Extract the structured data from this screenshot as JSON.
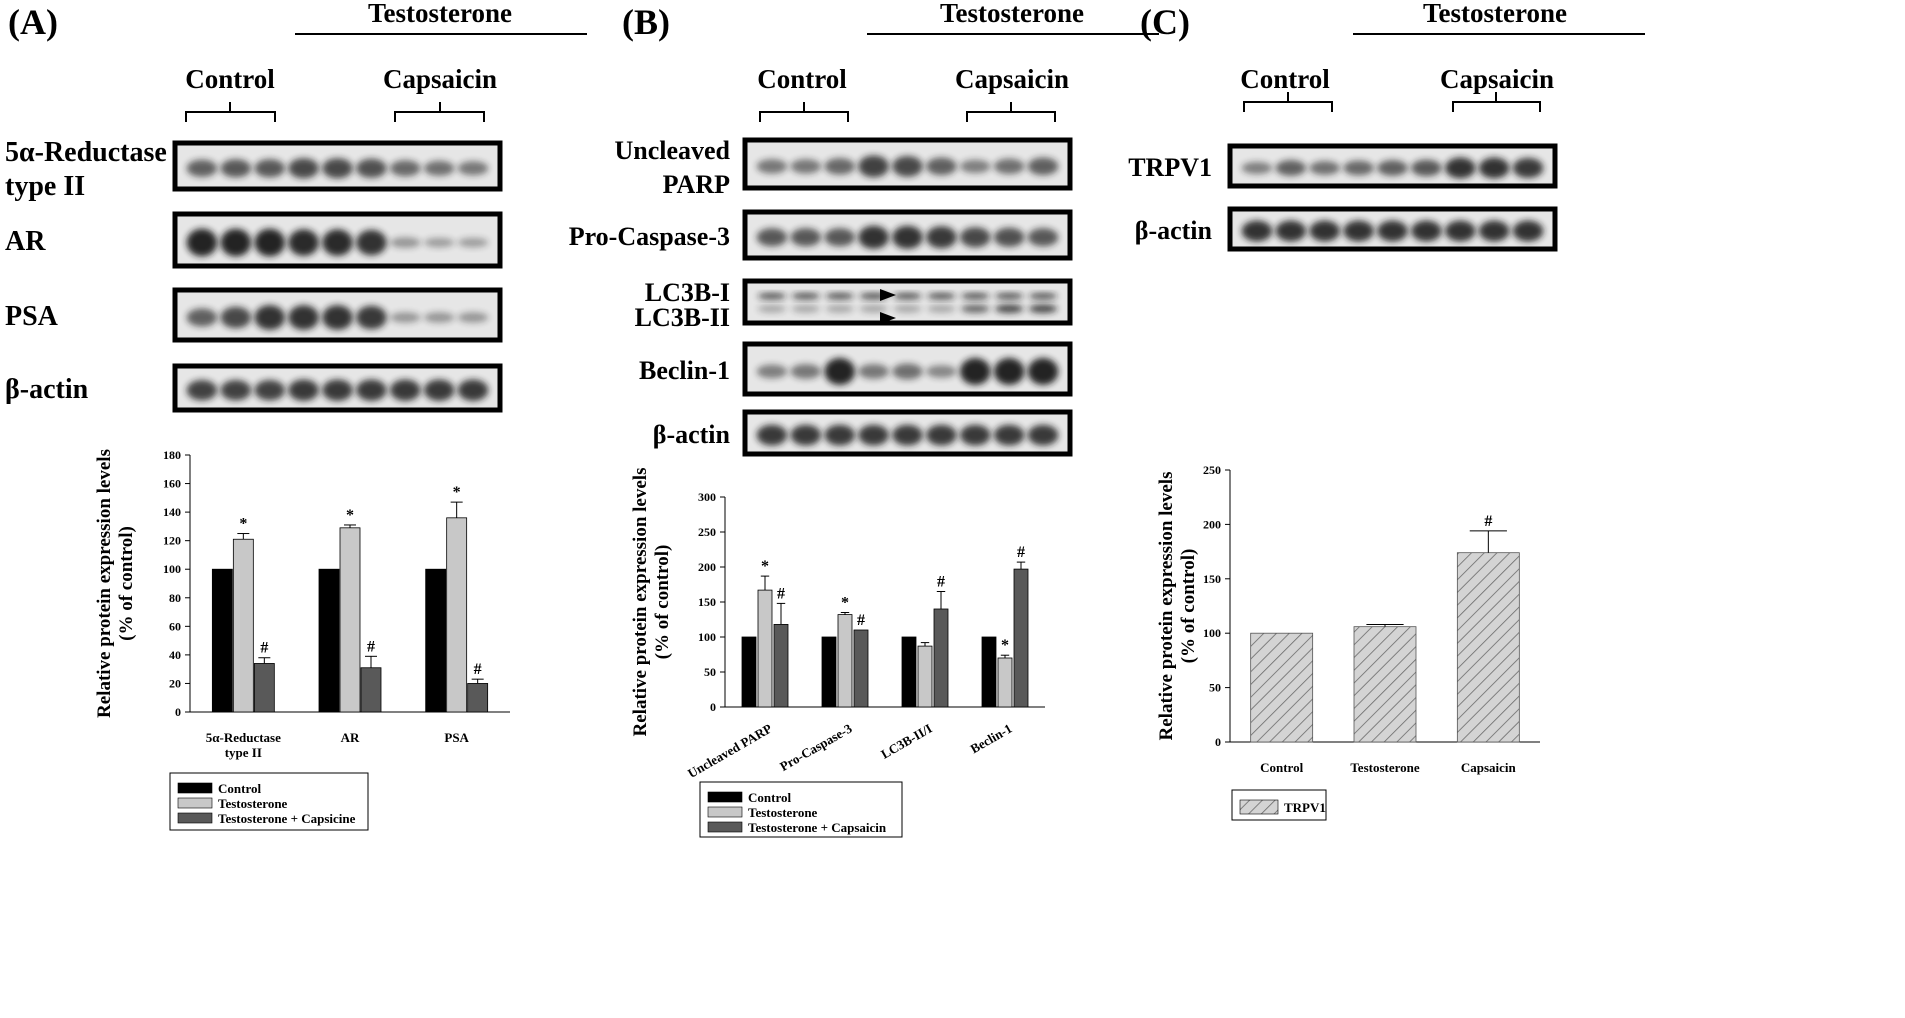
{
  "colors": {
    "control": "#000000",
    "testosterone": "#c8c8c8",
    "combo": "#595959",
    "trpv1": "#cfcfcf",
    "blot_bg": "#e6e6e6",
    "band": "#1a1a1a"
  },
  "blots": {
    "A": {
      "letter": "(A)",
      "treatment": "Testosterone",
      "control_label": "Control",
      "capsaicin_label": "Capsaicin",
      "rows": [
        {
          "label": "5α-Reductase",
          "label2": "type II",
          "band": [
            0.55,
            0.6,
            0.6,
            0.7,
            0.7,
            0.65,
            0.5,
            0.45,
            0.4
          ]
        },
        {
          "label": "AR",
          "label2": "",
          "band": [
            0.95,
            0.95,
            0.95,
            0.9,
            0.9,
            0.85,
            0.2,
            0.15,
            0.15
          ]
        },
        {
          "label": "PSA",
          "label2": "",
          "band": [
            0.55,
            0.7,
            0.85,
            0.85,
            0.85,
            0.8,
            0.2,
            0.2,
            0.2
          ]
        },
        {
          "label": "β-actin",
          "label2": "",
          "band": [
            0.75,
            0.75,
            0.75,
            0.8,
            0.8,
            0.8,
            0.8,
            0.8,
            0.8
          ]
        }
      ]
    },
    "B": {
      "letter": "(B)",
      "treatment": "Testosterone",
      "control_label": "Control",
      "capsaicin_label": "Capsaicin",
      "rows": [
        {
          "label": "Uncleaved",
          "label2": "PARP",
          "band": [
            0.4,
            0.4,
            0.5,
            0.75,
            0.7,
            0.55,
            0.35,
            0.45,
            0.55
          ]
        },
        {
          "label": "Pro-Caspase-3",
          "label2": "",
          "band": [
            0.6,
            0.6,
            0.6,
            0.85,
            0.85,
            0.8,
            0.7,
            0.65,
            0.6
          ]
        },
        {
          "label": "LC3B-I",
          "label2": "LC3B-II",
          "band": [
            0.7,
            0.7,
            0.7,
            0.7,
            0.7,
            0.7,
            0.8,
            0.85,
            0.85
          ]
        },
        {
          "label": "Beclin-1",
          "label2": "",
          "band": [
            0.35,
            0.4,
            0.95,
            0.4,
            0.45,
            0.3,
            0.95,
            0.95,
            0.95
          ]
        },
        {
          "label": "β-actin",
          "label2": "",
          "band": [
            0.8,
            0.8,
            0.8,
            0.8,
            0.8,
            0.8,
            0.8,
            0.8,
            0.8
          ]
        }
      ]
    },
    "C": {
      "letter": "(C)",
      "treatment": "Testosterone",
      "control_label": "Control",
      "capsaicin_label": "Capsaicin",
      "rows": [
        {
          "label": "TRPV1",
          "label2": "",
          "band": [
            0.35,
            0.55,
            0.45,
            0.5,
            0.55,
            0.6,
            0.85,
            0.85,
            0.8
          ]
        },
        {
          "label": "β-actin",
          "label2": "",
          "band": [
            0.85,
            0.85,
            0.85,
            0.85,
            0.85,
            0.85,
            0.85,
            0.85,
            0.85
          ]
        }
      ]
    }
  },
  "chart_data": [
    {
      "type": "bar",
      "panel": "A",
      "categories": [
        "5α-Reductase type II",
        "AR",
        "PSA"
      ],
      "series": [
        {
          "name": "Control",
          "values": [
            100,
            100,
            100
          ],
          "errors": [
            0,
            0,
            0
          ]
        },
        {
          "name": "Testosterone",
          "values": [
            121,
            129,
            136
          ],
          "errors": [
            4,
            2,
            11
          ]
        },
        {
          "name": "Testosterone + Capsicine",
          "values": [
            34,
            31,
            20
          ],
          "errors": [
            4,
            8,
            3
          ]
        }
      ],
      "annotations": [
        {
          "series": 1,
          "category": 0,
          "text": "*"
        },
        {
          "series": 2,
          "category": 0,
          "text": "#"
        },
        {
          "series": 1,
          "category": 1,
          "text": "*"
        },
        {
          "series": 2,
          "category": 1,
          "text": "#"
        },
        {
          "series": 1,
          "category": 2,
          "text": "*"
        },
        {
          "series": 2,
          "category": 2,
          "text": "#"
        }
      ],
      "ylabel": "Relative protein expression levels (% of control)",
      "ylabel_line1": "Relative protein expression levels",
      "ylabel_line2": "(% of control)",
      "ylim": [
        0,
        180
      ],
      "yticks": [
        0,
        20,
        40,
        60,
        80,
        100,
        120,
        140,
        160,
        180
      ],
      "legend": [
        "Control",
        "Testosterone",
        "Testosterone + Capsicine"
      ]
    },
    {
      "type": "bar",
      "panel": "B",
      "categories": [
        "Uncleaved PARP",
        "Pro-Caspase-3",
        "LC3B-II/I",
        "Beclin-1"
      ],
      "series": [
        {
          "name": "Control",
          "values": [
            100,
            100,
            100,
            100
          ],
          "errors": [
            0,
            0,
            0,
            0
          ]
        },
        {
          "name": "Testosterone",
          "values": [
            167,
            132,
            87,
            70
          ],
          "errors": [
            20,
            3,
            5,
            4
          ]
        },
        {
          "name": "Testosterone + Capsaicin",
          "values": [
            118,
            110,
            140,
            197
          ],
          "errors": [
            30,
            0,
            25,
            10
          ]
        }
      ],
      "annotations": [
        {
          "series": 1,
          "category": 0,
          "text": "*"
        },
        {
          "series": 2,
          "category": 0,
          "text": "#"
        },
        {
          "series": 1,
          "category": 1,
          "text": "*"
        },
        {
          "series": 2,
          "category": 1,
          "text": "#"
        },
        {
          "series": 2,
          "category": 2,
          "text": "#"
        },
        {
          "series": 1,
          "category": 3,
          "text": "*"
        },
        {
          "series": 2,
          "category": 3,
          "text": "#"
        }
      ],
      "ylabel": "Relative protein expression levels (% of control)",
      "ylabel_line1": "Relative protein expression levels",
      "ylabel_line2": "(% of control)",
      "ylim": [
        0,
        300
      ],
      "yticks": [
        0,
        50,
        100,
        150,
        200,
        250,
        300
      ],
      "legend": [
        "Control",
        "Testosterone",
        "Testosterone + Capsaicin"
      ]
    },
    {
      "type": "bar",
      "panel": "C",
      "categories": [
        "Control",
        "Testosterone",
        "Capsaicin"
      ],
      "series": [
        {
          "name": "TRPV1",
          "values": [
            100,
            106,
            174
          ],
          "errors": [
            0,
            2,
            20
          ]
        }
      ],
      "annotations": [
        {
          "series": 0,
          "category": 2,
          "text": "#"
        }
      ],
      "ylabel": "Relative protein expression levels (% of control)",
      "ylabel_line1": "Relative protein expression levels",
      "ylabel_line2": "(% of control)",
      "ylim": [
        0,
        250
      ],
      "yticks": [
        0,
        50,
        100,
        150,
        200,
        250
      ],
      "legend": [
        "TRPV1"
      ]
    }
  ]
}
